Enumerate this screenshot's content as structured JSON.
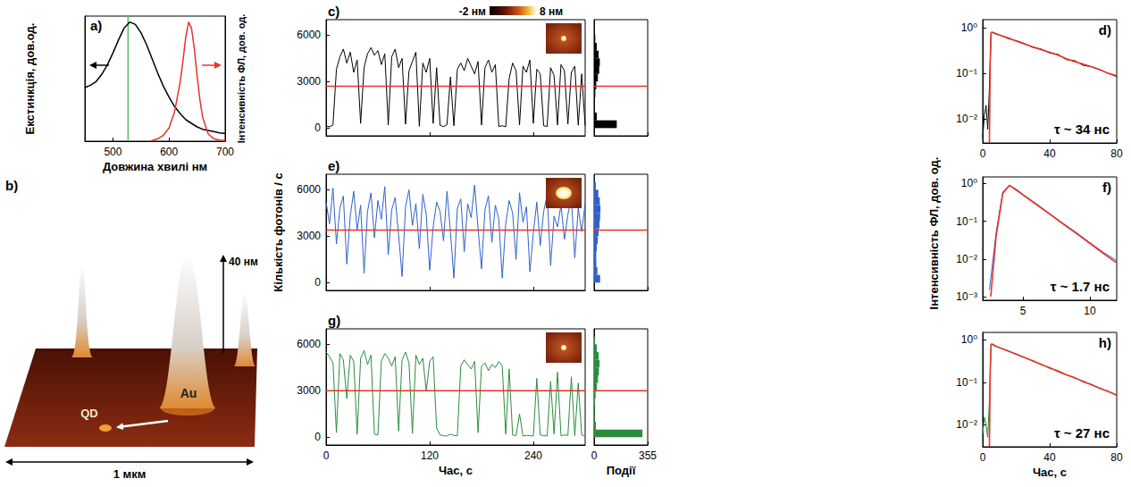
{
  "chart_data": [
    {
      "panel": "a)",
      "type": "line",
      "xlabel": "Довжина хвилі нм",
      "ylabel": "Екстинкція, дов.од.",
      "y2label": "Інтенсивність ФЛ, дов. од.",
      "xlim": [
        450,
        700
      ],
      "xticks": [
        500,
        600,
        700
      ],
      "ylim": [
        0,
        1.05
      ],
      "y2lim": [
        0,
        1.05
      ],
      "tick_labels": "x",
      "grid": false,
      "series": [
        {
          "color": "#000000",
          "x": [
            450,
            460,
            470,
            480,
            490,
            500,
            510,
            520,
            530,
            540,
            550,
            560,
            570,
            580,
            590,
            600,
            610,
            620,
            630,
            640,
            650,
            660,
            670,
            680,
            690,
            700
          ],
          "values": [
            0.45,
            0.47,
            0.5,
            0.56,
            0.64,
            0.74,
            0.85,
            0.95,
            1.0,
            0.98,
            0.91,
            0.81,
            0.69,
            0.57,
            0.46,
            0.37,
            0.29,
            0.23,
            0.18,
            0.15,
            0.12,
            0.1,
            0.09,
            0.08,
            0.07,
            0.065
          ]
        },
        {
          "color": "#e8332a",
          "axis": "y2",
          "x": [
            565,
            570,
            580,
            590,
            600,
            610,
            620,
            625,
            630,
            635,
            640,
            645,
            650,
            655,
            660,
            670,
            680,
            690,
            700
          ],
          "values": [
            0,
            0.005,
            0.02,
            0.05,
            0.11,
            0.25,
            0.5,
            0.68,
            0.88,
            1.0,
            0.95,
            0.78,
            0.55,
            0.35,
            0.2,
            0.06,
            0.02,
            0.01,
            0.005
          ]
        }
      ],
      "vline": {
        "x": 527,
        "color": "#5cb85c"
      }
    },
    {
      "panel": "c)",
      "type": "line",
      "color": "#000000",
      "x": [
        0,
        4,
        8,
        12,
        16,
        20,
        24,
        28,
        32,
        36,
        40,
        44,
        48,
        52,
        56,
        60,
        64,
        68,
        72,
        76,
        80,
        84,
        88,
        92,
        96,
        100,
        104,
        108,
        112,
        116,
        120,
        124,
        128,
        132,
        136,
        140,
        144,
        148,
        152,
        156,
        160,
        164,
        168,
        172,
        176,
        180,
        184,
        188,
        192,
        196,
        200,
        204,
        208,
        212,
        216,
        220,
        224,
        228,
        232,
        236,
        240,
        244,
        248,
        252,
        256,
        260,
        264,
        268,
        272,
        276,
        280,
        284,
        288,
        292,
        296,
        300
      ],
      "values": [
        150,
        80,
        200,
        3800,
        4600,
        5100,
        4200,
        4900,
        3600,
        4400,
        300,
        3900,
        4800,
        5200,
        4700,
        5000,
        4100,
        4800,
        200,
        4600,
        5100,
        3900,
        4500,
        250,
        3700,
        4300,
        4900,
        120,
        4200,
        3600,
        4500,
        300,
        3900,
        180,
        90,
        220,
        3300,
        150,
        3800,
        4200,
        3700,
        4500,
        4000,
        3500,
        4300,
        200,
        3900,
        4400,
        3600,
        4100,
        100,
        150,
        80,
        3200,
        4200,
        3700,
        200,
        4000,
        3600,
        4400,
        300,
        3800,
        3500,
        150,
        100,
        3900,
        3400,
        200,
        4100,
        3700,
        250,
        3600,
        4000,
        180,
        3500,
        150
      ],
      "xlim": [
        0,
        300
      ],
      "xticks": [
        0,
        120,
        240
      ],
      "ylim": [
        -500,
        7000
      ],
      "yticks": [
        0,
        3000,
        6000
      ],
      "tick_labels": "y",
      "grid": false,
      "hline": {
        "value": 2700,
        "color": "#e8332a"
      },
      "histogram": {
        "bins": [
          0,
          500,
          1000,
          1500,
          2000,
          2500,
          3000,
          3500,
          4000,
          4500,
          5000,
          5500,
          6000,
          6500,
          7000
        ],
        "counts": [
          150,
          18,
          6,
          5,
          8,
          14,
          25,
          34,
          38,
          30,
          18,
          8,
          2,
          0
        ],
        "xlim": [
          0,
          355
        ],
        "xticks": [
          0,
          355
        ],
        "tick_labels": false
      }
    },
    {
      "panel": "e)",
      "type": "line",
      "color": "#2f62c8",
      "x": [
        0,
        4,
        8,
        12,
        16,
        20,
        24,
        28,
        32,
        36,
        40,
        44,
        48,
        52,
        56,
        60,
        64,
        68,
        72,
        76,
        80,
        84,
        88,
        92,
        96,
        100,
        104,
        108,
        112,
        116,
        120,
        124,
        128,
        132,
        136,
        140,
        144,
        148,
        152,
        156,
        160,
        164,
        168,
        172,
        176,
        180,
        184,
        188,
        192,
        196,
        200,
        204,
        208,
        212,
        216,
        220,
        224,
        228,
        232,
        236,
        240,
        244,
        248,
        252,
        256,
        260,
        264,
        268,
        272,
        276,
        280,
        284,
        288,
        292,
        296,
        300
      ],
      "values": [
        5200,
        3800,
        6100,
        2500,
        4800,
        5600,
        1200,
        4300,
        5900,
        3400,
        5000,
        600,
        4600,
        5800,
        2900,
        5300,
        4100,
        6200,
        1800,
        4700,
        5500,
        3100,
        400,
        4900,
        6000,
        3700,
        5100,
        2200,
        5700,
        4400,
        800,
        3600,
        5200,
        4600,
        2700,
        5900,
        3300,
        300,
        4800,
        5400,
        2000,
        5100,
        4200,
        6300,
        3500,
        900,
        4700,
        5600,
        2600,
        5000,
        4100,
        300,
        3800,
        5300,
        4500,
        1500,
        5800,
        3900,
        4900,
        700,
        3200,
        5200,
        2400,
        4600,
        5700,
        1100,
        4300,
        3600,
        5000,
        2800,
        4400,
        5500,
        1600,
        4800,
        3300,
        5100
      ],
      "xlim": [
        0,
        300
      ],
      "xticks": [
        0,
        120,
        240
      ],
      "ylim": [
        -500,
        7000
      ],
      "yticks": [
        0,
        3000,
        6000
      ],
      "tick_labels": "y",
      "grid": false,
      "hline": {
        "value": 3400,
        "color": "#e8332a"
      },
      "histogram": {
        "bins": [
          0,
          500,
          1000,
          1500,
          2000,
          2500,
          3000,
          3500,
          4000,
          4500,
          5000,
          5500,
          6000,
          6500,
          7000
        ],
        "counts": [
          40,
          22,
          15,
          14,
          18,
          24,
          30,
          36,
          40,
          42,
          38,
          28,
          12,
          2
        ],
        "xlim": [
          0,
          355
        ],
        "xticks": [
          0,
          355
        ],
        "tick_labels": false
      }
    },
    {
      "panel": "g)",
      "type": "line",
      "color": "#2a8c3c",
      "xlabel": "Час, с",
      "x": [
        0,
        4,
        8,
        12,
        16,
        20,
        24,
        28,
        32,
        36,
        40,
        44,
        48,
        52,
        56,
        60,
        64,
        68,
        72,
        76,
        80,
        84,
        88,
        92,
        96,
        100,
        104,
        108,
        112,
        116,
        120,
        124,
        128,
        132,
        136,
        140,
        144,
        148,
        152,
        156,
        160,
        164,
        168,
        172,
        176,
        180,
        184,
        188,
        192,
        196,
        200,
        204,
        208,
        212,
        216,
        220,
        224,
        228,
        232,
        236,
        240,
        244,
        248,
        252,
        256,
        260,
        264,
        268,
        272,
        276,
        280,
        284,
        288,
        292,
        296,
        300
      ],
      "values": [
        5500,
        5200,
        4800,
        300,
        5400,
        5000,
        2500,
        5300,
        4900,
        200,
        5100,
        5600,
        4700,
        5300,
        200,
        150,
        4900,
        5400,
        5100,
        4600,
        5200,
        400,
        5000,
        5500,
        4800,
        250,
        5300,
        4700,
        5100,
        3000,
        4900,
        5200,
        600,
        150,
        100,
        80,
        200,
        120,
        90,
        4600,
        5000,
        4700,
        4400,
        4900,
        300,
        4600,
        4800,
        4300,
        4700,
        4500,
        4900,
        4600,
        200,
        4400,
        150,
        100,
        1500,
        80,
        120,
        100,
        90,
        3800,
        150,
        100,
        80,
        3600,
        200,
        4200,
        100,
        150,
        120,
        3900,
        100,
        3500,
        150,
        80
      ],
      "xlim": [
        0,
        300
      ],
      "xticks": [
        0,
        120,
        240
      ],
      "ylim": [
        -500,
        7000
      ],
      "yticks": [
        0,
        3000,
        6000
      ],
      "grid": false,
      "hline": {
        "value": 3000,
        "color": "#e8332a"
      },
      "histogram": {
        "bins": [
          0,
          500,
          1000,
          1500,
          2000,
          2500,
          3000,
          3500,
          4000,
          4500,
          5000,
          5500,
          6000,
          6500,
          7000
        ],
        "counts": [
          320,
          12,
          5,
          4,
          6,
          10,
          18,
          26,
          32,
          36,
          30,
          18,
          6,
          0
        ],
        "xlim": [
          0,
          355
        ],
        "xticks": [
          0,
          355
        ],
        "xlabel": "Події",
        "tick_labels": "x"
      }
    },
    {
      "panel": "d)",
      "type": "line",
      "log": "y",
      "xlim": [
        0,
        80
      ],
      "xticks": [
        0,
        40,
        80
      ],
      "ylim": [
        0.003,
        1.5
      ],
      "yticks": [
        {
          "value": 0.01,
          "label": "10⁻²"
        },
        {
          "value": 0.1,
          "label": "10⁻¹"
        },
        {
          "value": 1,
          "label": "10⁰"
        }
      ],
      "grid": false,
      "annotation": "τ ~ 34 нс",
      "series": [
        {
          "color": "#000000",
          "x": [
            0,
            1,
            2,
            3,
            4,
            5,
            6,
            8,
            10,
            15,
            20,
            25,
            30,
            35,
            40,
            45,
            50,
            55,
            60,
            65,
            70,
            75,
            80
          ],
          "values": [
            0.004,
            0.012,
            0.02,
            0.006,
            0.05,
            0.75,
            0.8,
            0.74,
            0.7,
            0.58,
            0.52,
            0.45,
            0.37,
            0.34,
            0.28,
            0.26,
            0.2,
            0.19,
            0.15,
            0.14,
            0.12,
            0.1,
            0.085
          ]
        },
        {
          "color": "#e8332a",
          "x": [
            4,
            4.5,
            5,
            6,
            8,
            10,
            15,
            20,
            25,
            30,
            35,
            40,
            45,
            50,
            55,
            60,
            65,
            70,
            75,
            80
          ],
          "values": [
            0.003,
            0.2,
            0.8,
            0.78,
            0.73,
            0.69,
            0.6,
            0.51,
            0.44,
            0.38,
            0.33,
            0.29,
            0.25,
            0.21,
            0.18,
            0.16,
            0.14,
            0.12,
            0.1,
            0.089
          ]
        }
      ]
    },
    {
      "panel": "f)",
      "type": "line",
      "log": "y",
      "xlim": [
        2,
        12
      ],
      "xticks": [
        5,
        10
      ],
      "ylim": [
        0.0008,
        1.5
      ],
      "yticks": [
        {
          "value": 0.001,
          "label": "10⁻³"
        },
        {
          "value": 0.01,
          "label": "10⁻²"
        },
        {
          "value": 0.1,
          "label": "10⁻¹"
        },
        {
          "value": 1,
          "label": "10⁰"
        }
      ],
      "grid": false,
      "annotation": "τ ~ 1.7 нс",
      "series": [
        {
          "color": "#2f62c8",
          "x": [
            2.5,
            3,
            3.5,
            4,
            4.5,
            5,
            6,
            7,
            8,
            9,
            10,
            11,
            12
          ],
          "values": [
            0.0015,
            0.05,
            0.6,
            0.88,
            0.72,
            0.52,
            0.29,
            0.16,
            0.088,
            0.05,
            0.027,
            0.015,
            0.009
          ]
        },
        {
          "color": "#e8332a",
          "x": [
            2.6,
            3,
            3.5,
            4,
            5,
            6,
            7,
            8,
            9,
            10,
            11,
            12
          ],
          "values": [
            0.001,
            0.04,
            0.55,
            0.9,
            0.5,
            0.28,
            0.154,
            0.085,
            0.047,
            0.026,
            0.014,
            0.0079
          ]
        }
      ]
    },
    {
      "panel": "h)",
      "type": "line",
      "log": "y",
      "xlabel": "Час, с",
      "xlim": [
        0,
        80
      ],
      "xticks": [
        0,
        40,
        80
      ],
      "ylim": [
        0.003,
        1.5
      ],
      "yticks": [
        {
          "value": 0.01,
          "label": "10⁻²"
        },
        {
          "value": 0.1,
          "label": "10⁻¹"
        },
        {
          "value": 1,
          "label": "10⁰"
        }
      ],
      "grid": false,
      "annotation": "τ ~ 27 нс",
      "series": [
        {
          "color": "#2a8c3c",
          "x": [
            0,
            1,
            2,
            3,
            4,
            5,
            6,
            8,
            10,
            15,
            20,
            25,
            30,
            35,
            40,
            45,
            50,
            55,
            60,
            65,
            70,
            75,
            80
          ],
          "values": [
            0.006,
            0.015,
            0.01,
            0.005,
            0.04,
            0.78,
            0.8,
            0.72,
            0.65,
            0.56,
            0.45,
            0.39,
            0.31,
            0.27,
            0.21,
            0.19,
            0.15,
            0.13,
            0.1,
            0.09,
            0.07,
            0.062,
            0.048
          ]
        },
        {
          "color": "#e8332a",
          "x": [
            4,
            4.5,
            5,
            6,
            8,
            10,
            15,
            20,
            25,
            30,
            35,
            40,
            45,
            50,
            55,
            60,
            65,
            70,
            75,
            80
          ],
          "values": [
            0.003,
            0.2,
            0.8,
            0.77,
            0.7,
            0.66,
            0.55,
            0.46,
            0.38,
            0.32,
            0.26,
            0.22,
            0.18,
            0.15,
            0.126,
            0.105,
            0.087,
            0.072,
            0.06,
            0.05
          ]
        }
      ]
    }
  ],
  "figure": {
    "shared_labels": {
      "counts": "Кількість фотонів / с",
      "decay": "Інтенсивність ФЛ, дов. од."
    },
    "colorbar": {
      "labels": [
        "-2 нм",
        "8 нм"
      ]
    },
    "panel_b": {
      "panel": "b)",
      "qd": "QD",
      "au": "Au",
      "height": "40 нм",
      "width": "1 мкм"
    }
  }
}
